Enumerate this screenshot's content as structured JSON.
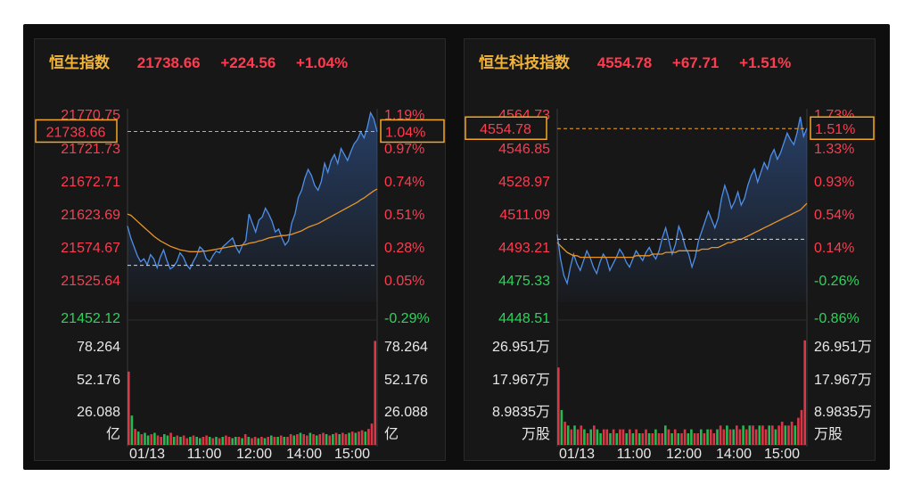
{
  "colors": {
    "up": "#ff3b4f",
    "down": "#2bd45a",
    "name": "#f2b53a",
    "axis_neutral": "#e8e8e8",
    "price_line": "#4f8fe8",
    "avg_line": "#e7952a",
    "highlight": "#f5a623"
  },
  "chart_data": [
    {
      "type": "line",
      "title": "恒生指数",
      "last_price": "21738.66",
      "change": "+224.56",
      "change_pct": "+1.04%",
      "price_labels": [
        "21770.75",
        "21721.73",
        "21672.71",
        "21623.69",
        "21574.67",
        "21525.64",
        "21452.12"
      ],
      "pct_labels": [
        "1.19%",
        "0.97%",
        "0.74%",
        "0.51%",
        "0.28%",
        "0.05%",
        "-0.29%"
      ],
      "current_price_label": "21738.66",
      "current_pct_label": "1.04%",
      "y_range": [
        21452.12,
        21770.75
      ],
      "prev_close": 21514.1,
      "volume_labels": [
        "78.264",
        "52.176",
        "26.088"
      ],
      "volume_unit_left": "亿",
      "volume_unit_right": "亿",
      "volume_max": 78.264,
      "x_labels": [
        "01/13",
        "11:00",
        "12:00",
        "14:00",
        "15:00"
      ],
      "price_series": [
        21580,
        21560,
        21545,
        21530,
        21520,
        21525,
        21515,
        21532,
        21525,
        21510,
        21528,
        21540,
        21522,
        21508,
        21512,
        21520,
        21535,
        21528,
        21515,
        21508,
        21520,
        21530,
        21545,
        21540,
        21525,
        21520,
        21530,
        21538,
        21535,
        21545,
        21550,
        21555,
        21560,
        21545,
        21535,
        21548,
        21555,
        21600,
        21585,
        21570,
        21590,
        21595,
        21610,
        21600,
        21588,
        21570,
        21575,
        21560,
        21548,
        21555,
        21585,
        21600,
        21628,
        21640,
        21660,
        21675,
        21665,
        21648,
        21640,
        21655,
        21685,
        21670,
        21690,
        21700,
        21685,
        21710,
        21700,
        21690,
        21705,
        21718,
        21725,
        21738,
        21728,
        21745,
        21770,
        21760,
        21738
      ],
      "avg_series": [
        21600,
        21598,
        21593,
        21588,
        21583,
        21578,
        21573,
        21568,
        21563,
        21559,
        21555,
        21552,
        21549,
        21546,
        21544,
        21542,
        21540,
        21539,
        21538,
        21537,
        21537,
        21537,
        21537,
        21538,
        21538,
        21539,
        21540,
        21541,
        21542,
        21543,
        21544,
        21545,
        21546,
        21547,
        21547,
        21548,
        21549,
        21551,
        21552,
        21553,
        21555,
        21556,
        21558,
        21560,
        21561,
        21562,
        21563,
        21564,
        21564,
        21565,
        21566,
        21568,
        21570,
        21572,
        21575,
        21578,
        21580,
        21582,
        21584,
        21587,
        21590,
        21593,
        21596,
        21599,
        21602,
        21605,
        21608,
        21611,
        21614,
        21617,
        21620,
        21624,
        21627,
        21631,
        21635,
        21639,
        21642
      ],
      "volume_series": [
        55,
        22,
        12,
        10,
        8,
        9,
        7,
        8,
        9,
        7,
        6,
        8,
        7,
        9,
        6,
        7,
        6,
        7,
        5,
        6,
        7,
        6,
        5,
        6,
        7,
        6,
        5,
        6,
        5,
        6,
        7,
        6,
        5,
        6,
        6,
        5,
        8,
        6,
        5,
        6,
        5,
        6,
        5,
        6,
        7,
        6,
        6,
        7,
        6,
        6,
        8,
        7,
        8,
        9,
        8,
        7,
        9,
        8,
        7,
        8,
        9,
        8,
        7,
        8,
        9,
        8,
        9,
        8,
        9,
        10,
        9,
        10,
        11,
        10,
        12,
        16,
        78
      ],
      "volume_up": [
        true,
        false,
        true,
        false,
        true,
        false,
        false,
        true,
        false,
        true,
        true,
        false,
        false,
        true,
        false,
        true,
        false,
        true,
        true,
        false,
        true,
        false,
        false,
        true,
        true,
        false,
        true,
        false,
        true,
        false,
        true,
        true,
        false,
        false,
        true,
        false,
        true,
        false,
        true,
        true,
        false,
        true,
        false,
        true,
        false,
        true,
        false,
        true,
        false,
        true,
        true,
        false,
        true,
        false,
        true,
        true,
        false,
        true,
        false,
        true,
        true,
        false,
        true,
        false,
        true,
        false,
        true,
        true,
        false,
        true,
        false,
        true,
        true,
        false,
        true,
        true,
        true
      ]
    },
    {
      "type": "line",
      "title": "恒生科技指数",
      "last_price": "4554.78",
      "change": "+67.71",
      "change_pct": "+1.51%",
      "price_labels": [
        "4564.73",
        "4546.85",
        "4528.97",
        "4511.09",
        "4493.21",
        "4475.33",
        "4448.51"
      ],
      "pct_labels": [
        "1.73%",
        "1.33%",
        "0.93%",
        "0.54%",
        "0.14%",
        "-0.26%",
        "-0.86%"
      ],
      "current_price_label": "4554.78",
      "current_pct_label": "1.51%",
      "y_range": [
        4448.51,
        4564.73
      ],
      "prev_close": 4487.07,
      "volume_labels": [
        "26.951万",
        "17.967万",
        "8.9835万"
      ],
      "volume_unit_left": "万股",
      "volume_unit_right": "万股",
      "volume_max": 26.951,
      "x_labels": [
        "01/13",
        "11:00",
        "12:00",
        "14:00",
        "15:00"
      ],
      "price_series": [
        4490,
        4475,
        4465,
        4460,
        4470,
        4478,
        4472,
        4468,
        4474,
        4480,
        4476,
        4470,
        4466,
        4473,
        4478,
        4475,
        4468,
        4472,
        4476,
        4481,
        4478,
        4473,
        4470,
        4475,
        4480,
        4477,
        4474,
        4479,
        4482,
        4478,
        4475,
        4480,
        4488,
        4494,
        4486,
        4478,
        4484,
        4495,
        4490,
        4482,
        4478,
        4470,
        4476,
        4486,
        4492,
        4498,
        4504,
        4499,
        4494,
        4500,
        4512,
        4520,
        4514,
        4506,
        4510,
        4516,
        4508,
        4512,
        4520,
        4526,
        4530,
        4522,
        4528,
        4534,
        4530,
        4538,
        4542,
        4536,
        4540,
        4546,
        4552,
        4548,
        4545,
        4552,
        4562,
        4550,
        4555
      ],
      "avg_series": [
        4485,
        4483,
        4481,
        4479,
        4478,
        4477,
        4477,
        4476,
        4476,
        4476,
        4476,
        4476,
        4476,
        4476,
        4476,
        4476,
        4476,
        4476,
        4476,
        4476,
        4476,
        4476,
        4476,
        4476,
        4477,
        4477,
        4477,
        4477,
        4477,
        4478,
        4478,
        4478,
        4478,
        4479,
        4479,
        4479,
        4479,
        4480,
        4480,
        4480,
        4480,
        4480,
        4480,
        4480,
        4481,
        4481,
        4481,
        4482,
        4482,
        4482,
        4483,
        4484,
        4485,
        4485,
        4486,
        4487,
        4487,
        4488,
        4489,
        4490,
        4491,
        4492,
        4493,
        4494,
        4495,
        4496,
        4497,
        4498,
        4499,
        4500,
        4501,
        4502,
        4503,
        4504,
        4505,
        4507,
        4509
      ],
      "volume_series": [
        20,
        9,
        6,
        5,
        4,
        5,
        4,
        5,
        4,
        3,
        4,
        5,
        4,
        3,
        4,
        4,
        3,
        4,
        3,
        4,
        4,
        3,
        4,
        3,
        4,
        3,
        3,
        4,
        3,
        3,
        4,
        3,
        3,
        5,
        4,
        3,
        4,
        3,
        3,
        4,
        3,
        4,
        3,
        3,
        4,
        3,
        4,
        4,
        3,
        4,
        5,
        4,
        5,
        4,
        4,
        5,
        4,
        5,
        4,
        5,
        5,
        4,
        5,
        5,
        4,
        5,
        5,
        4,
        5,
        6,
        5,
        5,
        6,
        5,
        7,
        9,
        27
      ],
      "volume_up": [
        true,
        false,
        true,
        false,
        true,
        false,
        true,
        true,
        false,
        true,
        false,
        true,
        false,
        false,
        true,
        true,
        false,
        true,
        false,
        true,
        true,
        false,
        true,
        false,
        true,
        false,
        true,
        true,
        false,
        true,
        false,
        true,
        true,
        false,
        true,
        false,
        true,
        false,
        true,
        true,
        false,
        false,
        true,
        true,
        false,
        true,
        false,
        true,
        true,
        false,
        true,
        true,
        false,
        true,
        false,
        true,
        true,
        false,
        true,
        false,
        true,
        true,
        false,
        true,
        true,
        false,
        true,
        false,
        true,
        true,
        false,
        true,
        true,
        false,
        true,
        true,
        true
      ]
    }
  ]
}
